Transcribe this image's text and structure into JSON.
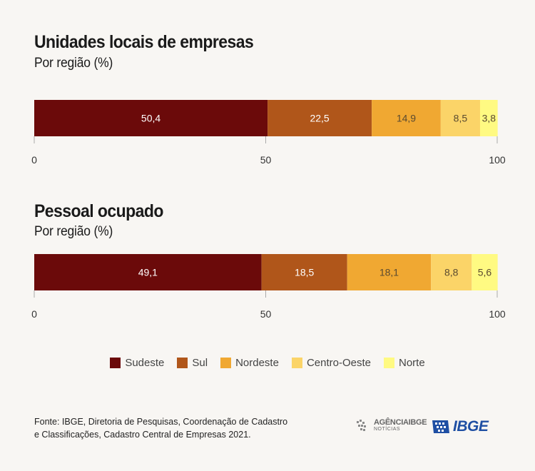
{
  "chart_data": [
    {
      "type": "bar",
      "stacked": true,
      "orientation": "horizontal",
      "title": "Unidades locais de empresas",
      "subtitle": "Por região (%)",
      "xlim": [
        0,
        100
      ],
      "xticks": [
        "0",
        "50",
        "100"
      ],
      "series": [
        {
          "name": "Sudeste",
          "value": 50.4,
          "label": "50,4",
          "color": "#6b0a0a"
        },
        {
          "name": "Sul",
          "value": 22.5,
          "label": "22,5",
          "color": "#b0561a"
        },
        {
          "name": "Nordeste",
          "value": 14.9,
          "label": "14,9",
          "color": "#f0a832"
        },
        {
          "name": "Centro-Oeste",
          "value": 8.5,
          "label": "8,5",
          "color": "#fbd468"
        },
        {
          "name": "Norte",
          "value": 3.8,
          "label": "3,8",
          "color": "#fffa82"
        }
      ]
    },
    {
      "type": "bar",
      "stacked": true,
      "orientation": "horizontal",
      "title": "Pessoal ocupado",
      "subtitle": "Por região (%)",
      "xlim": [
        0,
        100
      ],
      "xticks": [
        "0",
        "50",
        "100"
      ],
      "series": [
        {
          "name": "Sudeste",
          "value": 49.1,
          "label": "49,1",
          "color": "#6b0a0a"
        },
        {
          "name": "Sul",
          "value": 18.5,
          "label": "18,5",
          "color": "#b0561a"
        },
        {
          "name": "Nordeste",
          "value": 18.1,
          "label": "18,1",
          "color": "#f0a832"
        },
        {
          "name": "Centro-Oeste",
          "value": 8.8,
          "label": "8,8",
          "color": "#fbd468"
        },
        {
          "name": "Norte",
          "value": 5.6,
          "label": "5,6",
          "color": "#fffa82"
        }
      ]
    }
  ],
  "legend": [
    {
      "name": "Sudeste",
      "color": "#6b0a0a"
    },
    {
      "name": "Sul",
      "color": "#b0561a"
    },
    {
      "name": "Nordeste",
      "color": "#f0a832"
    },
    {
      "name": "Centro-Oeste",
      "color": "#fbd468"
    },
    {
      "name": "Norte",
      "color": "#fffa82"
    }
  ],
  "source": "Fonte: IBGE, Diretoria de Pesquisas, Coordenação de Cadastro e Classificações, Cadastro Central de Empresas 2021.",
  "branding": {
    "agencia_main": "AGÊNCIAIBGE",
    "agencia_sub": "NOTÍCIAS",
    "ibge": "IBGE",
    "ibge_color": "#1f4fa3"
  }
}
